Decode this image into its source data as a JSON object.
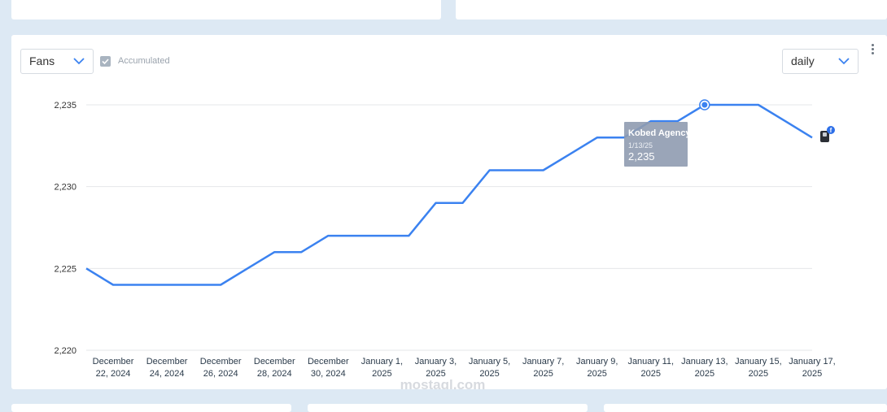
{
  "controls": {
    "metric_select": "Fans",
    "accumulated_label": "Accumulated",
    "accumulated_checked": true,
    "period_select": "daily"
  },
  "tooltip": {
    "name": "Kobed Agency",
    "date": "1/13/25",
    "value": "2,235"
  },
  "watermark": {
    "latin": "mostaql.com"
  },
  "colors": {
    "line": "#3b82f0",
    "tooltip_bg": "#8f9bb0",
    "grid": "#e4e7ea"
  },
  "chart_data": {
    "type": "line",
    "x": [
      "2024-12-21",
      "2024-12-22",
      "2024-12-23",
      "2024-12-24",
      "2024-12-25",
      "2024-12-26",
      "2024-12-27",
      "2024-12-28",
      "2024-12-29",
      "2024-12-30",
      "2024-12-31",
      "2025-01-01",
      "2025-01-02",
      "2025-01-03",
      "2025-01-04",
      "2025-01-05",
      "2025-01-06",
      "2025-01-07",
      "2025-01-08",
      "2025-01-09",
      "2025-01-10",
      "2025-01-11",
      "2025-01-12",
      "2025-01-13",
      "2025-01-14",
      "2025-01-15",
      "2025-01-16",
      "2025-01-17"
    ],
    "series": [
      {
        "values": [
          2225,
          2224,
          2224,
          2224,
          2224,
          2224,
          2225,
          2226,
          2226,
          2227,
          2227,
          2227,
          2227,
          2229,
          2229,
          2231,
          2231,
          2231,
          2232,
          2233,
          2233,
          2234,
          2234,
          2235,
          2235,
          2235,
          2234,
          2233
        ]
      }
    ],
    "x_tick_labels": [
      [
        "December",
        "22, 2024"
      ],
      [
        "December",
        "24, 2024"
      ],
      [
        "December",
        "26, 2024"
      ],
      [
        "December",
        "28, 2024"
      ],
      [
        "December",
        "30, 2024"
      ],
      [
        "January 1,",
        "2025"
      ],
      [
        "January 3,",
        "2025"
      ],
      [
        "January 5,",
        "2025"
      ],
      [
        "January 7,",
        "2025"
      ],
      [
        "January 9,",
        "2025"
      ],
      [
        "January 11,",
        "2025"
      ],
      [
        "January 13,",
        "2025"
      ],
      [
        "January 15,",
        "2025"
      ],
      [
        "January 17,",
        "2025"
      ]
    ],
    "y_ticks": [
      2220,
      2225,
      2230,
      2235
    ],
    "y_tick_labels": [
      "2,220",
      "2,225",
      "2,230",
      "2,235"
    ],
    "ylim": [
      2220,
      2235
    ],
    "grid": true,
    "highlight_index": 23
  }
}
